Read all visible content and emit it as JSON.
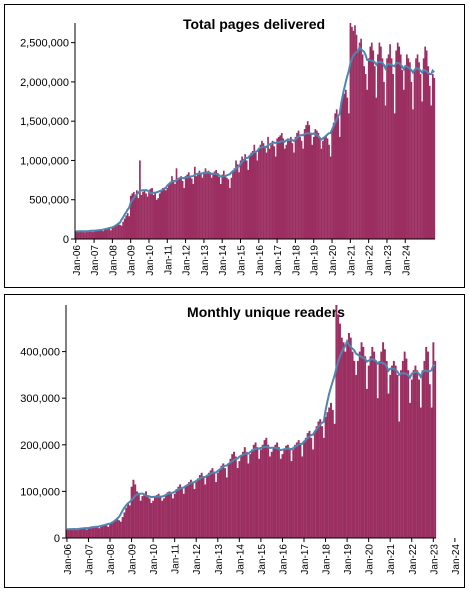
{
  "colors": {
    "bar": "#9b2f61",
    "trend": "#4f86b0",
    "axis": "#000000"
  },
  "chart_data": [
    {
      "type": "bar",
      "title": "Total pages delivered",
      "ylim": [
        0,
        2750000
      ],
      "yticks": [
        0,
        500000,
        1000000,
        1500000,
        2000000,
        2500000
      ],
      "ytick_labels": [
        "0",
        "500,000",
        "1,000,000",
        "1,500,000",
        "2,000,000",
        "2,500,000"
      ],
      "xtick_labels": [
        "Jan-06",
        "Jan-07",
        "Jan-08",
        "Jan-09",
        "Jan-10",
        "Jan-11",
        "Jan-12",
        "Jan-13",
        "Jan-14",
        "Jan-15",
        "Jan-16",
        "Jan-17",
        "Jan-18",
        "Jan-19",
        "Jan-20",
        "Jan-21",
        "Jan-22",
        "Jan-23",
        "Jan-24"
      ],
      "x_start": "Jan-06",
      "values": [
        100000,
        95000,
        105000,
        98000,
        110000,
        90000,
        85000,
        95000,
        100000,
        102000,
        96000,
        88000,
        110000,
        115000,
        120000,
        118000,
        125000,
        108000,
        100000,
        115000,
        130000,
        135000,
        128000,
        110000,
        150000,
        160000,
        175000,
        185000,
        200000,
        180000,
        170000,
        220000,
        260000,
        300000,
        330000,
        290000,
        550000,
        580000,
        600000,
        560000,
        620000,
        520000,
        1000000,
        560000,
        600000,
        620000,
        580000,
        540000,
        600000,
        640000,
        650000,
        560000,
        600000,
        500000,
        520000,
        580000,
        610000,
        650000,
        640000,
        620000,
        650000,
        700000,
        730000,
        800000,
        750000,
        700000,
        900000,
        760000,
        780000,
        800000,
        740000,
        650000,
        780000,
        820000,
        850000,
        800000,
        770000,
        700000,
        920000,
        800000,
        830000,
        870000,
        840000,
        780000,
        850000,
        900000,
        860000,
        870000,
        850000,
        780000,
        820000,
        860000,
        880000,
        840000,
        790000,
        700000,
        820000,
        870000,
        800000,
        780000,
        760000,
        650000,
        780000,
        850000,
        900000,
        1000000,
        950000,
        850000,
        1000000,
        1050000,
        1020000,
        1080000,
        1000000,
        880000,
        1050000,
        1100000,
        1120000,
        1200000,
        1100000,
        1000000,
        1150000,
        1200000,
        1250000,
        1220000,
        1180000,
        1100000,
        1300000,
        1150000,
        1200000,
        1250000,
        1180000,
        1050000,
        1280000,
        1300000,
        1320000,
        1350000,
        1280000,
        1150000,
        1200000,
        1280000,
        1250000,
        1300000,
        1220000,
        1100000,
        1300000,
        1350000,
        1380000,
        1300000,
        1250000,
        1150000,
        1400000,
        1450000,
        1500000,
        1450000,
        1350000,
        1200000,
        1300000,
        1400000,
        1380000,
        1350000,
        1280000,
        1150000,
        1250000,
        1300000,
        1320000,
        1280000,
        1200000,
        1050000,
        1400000,
        1480000,
        1600000,
        1650000,
        1550000,
        1300000,
        1750000,
        1800000,
        1850000,
        1900000,
        1800000,
        1600000,
        2750000,
        2700000,
        2650000,
        2720000,
        2600000,
        2400000,
        2500000,
        2550000,
        2350000,
        2200000,
        2100000,
        1900000,
        2300000,
        2450000,
        2500000,
        2400000,
        2200000,
        1800000,
        2350000,
        2500000,
        2450000,
        2300000,
        2000000,
        1700000,
        2300000,
        2350000,
        2480000,
        2300000,
        2100000,
        1600000,
        2400000,
        2500000,
        2450000,
        2350000,
        2150000,
        1900000,
        2200000,
        2350000,
        2300000,
        2250000,
        2000000,
        1650000,
        2150000,
        2300000,
        2350000,
        2250000,
        2100000,
        1750000,
        2300000,
        2450000,
        2400000,
        2200000,
        1950000,
        1700000,
        2100000,
        2050000
      ]
    },
    {
      "type": "bar",
      "title": "Monthly unique readers",
      "ylim": [
        0,
        500000
      ],
      "yticks": [
        0,
        100000,
        200000,
        300000,
        400000
      ],
      "ytick_labels": [
        "0",
        "100,000",
        "200,000",
        "300,000",
        "400,000"
      ],
      "xtick_labels": [
        "Jan-06",
        "Jan-07",
        "Jan-08",
        "Jan-09",
        "Jan-10",
        "Jan-11",
        "Jan-12",
        "Jan-13",
        "Jan-14",
        "Jan-15",
        "Jan-16",
        "Jan-17",
        "Jan-18",
        "Jan-19",
        "Jan-20",
        "Jan-21",
        "Jan-22",
        "Jan-23",
        "Jan-24"
      ],
      "x_start": "Jan-06",
      "values": [
        18000,
        19000,
        20000,
        19000,
        21000,
        18000,
        17000,
        19000,
        20000,
        21000,
        20000,
        18000,
        22000,
        24000,
        25000,
        24000,
        26000,
        23000,
        21000,
        24000,
        27000,
        28000,
        27000,
        24000,
        30000,
        33000,
        36000,
        38000,
        42000,
        38000,
        35000,
        45000,
        55000,
        65000,
        75000,
        70000,
        110000,
        125000,
        115000,
        100000,
        95000,
        80000,
        90000,
        95000,
        100000,
        92000,
        85000,
        75000,
        80000,
        88000,
        92000,
        95000,
        90000,
        80000,
        85000,
        92000,
        98000,
        100000,
        95000,
        85000,
        95000,
        105000,
        110000,
        115000,
        108000,
        95000,
        110000,
        115000,
        120000,
        125000,
        118000,
        105000,
        120000,
        128000,
        135000,
        140000,
        130000,
        115000,
        135000,
        140000,
        145000,
        150000,
        140000,
        120000,
        140000,
        148000,
        155000,
        160000,
        150000,
        130000,
        160000,
        170000,
        180000,
        185000,
        175000,
        150000,
        165000,
        175000,
        185000,
        195000,
        185000,
        160000,
        180000,
        190000,
        200000,
        205000,
        195000,
        170000,
        190000,
        200000,
        210000,
        215000,
        200000,
        175000,
        185000,
        195000,
        200000,
        205000,
        195000,
        170000,
        180000,
        190000,
        198000,
        200000,
        190000,
        165000,
        190000,
        200000,
        205000,
        210000,
        200000,
        175000,
        205000,
        215000,
        225000,
        230000,
        215000,
        190000,
        230000,
        240000,
        250000,
        255000,
        240000,
        215000,
        260000,
        270000,
        280000,
        290000,
        275000,
        245000,
        500000,
        480000,
        460000,
        430000,
        420000,
        400000,
        420000,
        440000,
        430000,
        400000,
        380000,
        350000,
        380000,
        400000,
        420000,
        410000,
        390000,
        320000,
        370000,
        390000,
        410000,
        400000,
        380000,
        300000,
        380000,
        400000,
        420000,
        405000,
        380000,
        310000,
        350000,
        370000,
        380000,
        370000,
        350000,
        250000,
        360000,
        380000,
        400000,
        385000,
        360000,
        290000,
        340000,
        360000,
        370000,
        360000,
        340000,
        280000,
        360000,
        380000,
        410000,
        400000,
        330000,
        280000,
        420000,
        380000
      ]
    }
  ]
}
